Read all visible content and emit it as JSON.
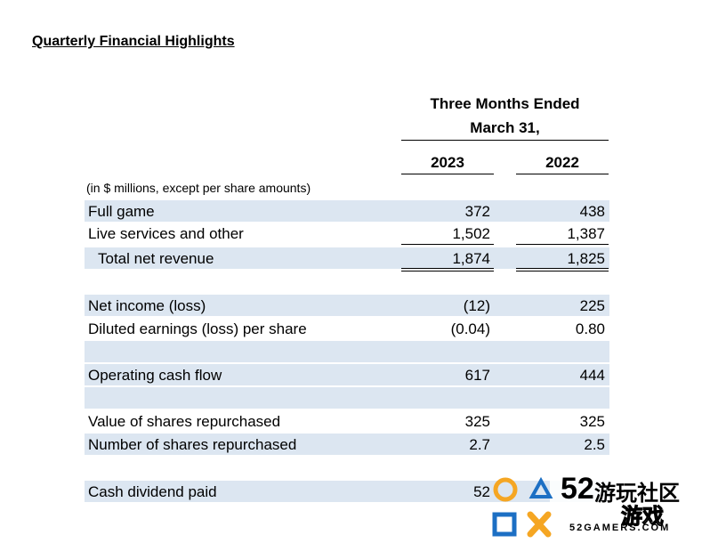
{
  "title": "Quarterly Financial Highlights",
  "header": {
    "line1": "Three Months Ended",
    "line2": "March 31,",
    "year1": "2023",
    "year2": "2022"
  },
  "units_note": "(in $ millions, except per share amounts)",
  "rows": [
    {
      "label": "Full game",
      "v2023": "372",
      "v2022": "438"
    },
    {
      "label": "Live services and other",
      "v2023": "1,502",
      "v2022": "1,387"
    },
    {
      "label": "Total net revenue",
      "v2023": "1,874",
      "v2022": "1,825"
    },
    {
      "label": "Net income (loss)",
      "v2023": "(12)",
      "v2022": "225"
    },
    {
      "label": "Diluted earnings (loss) per share",
      "v2023": "(0.04)",
      "v2022": "0.80"
    },
    {
      "label": "Operating cash flow",
      "v2023": "617",
      "v2022": "444"
    },
    {
      "label": "Value of shares repurchased",
      "v2023": "325",
      "v2022": "325"
    },
    {
      "label": "Number of shares repurchased",
      "v2023": "2.7",
      "v2022": "2.5"
    },
    {
      "label": "Cash dividend paid",
      "v2023": "52",
      "v2022": ""
    }
  ],
  "watermark": {
    "number": "52",
    "chinese_top": "游玩社区",
    "chinese_bottom": "游戏",
    "domain": "52GAMERS.COM",
    "colors": {
      "orange": "#f5a623",
      "blue": "#1c6fc4",
      "white": "#ffffff"
    }
  }
}
